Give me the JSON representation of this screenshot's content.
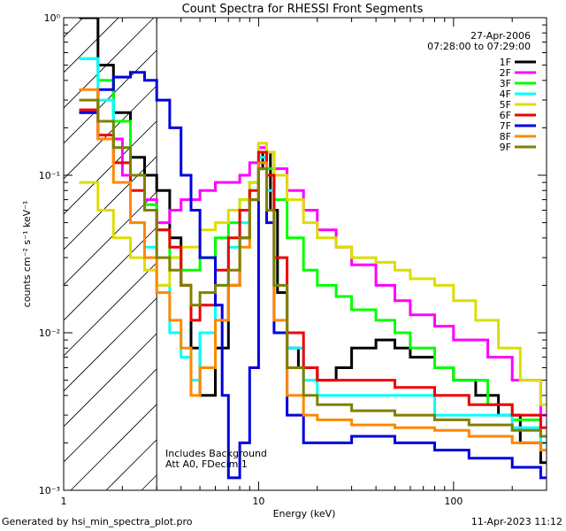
{
  "chart_data": {
    "type": "line",
    "title": "Count Spectra for RHESSI Front Segments",
    "xlabel": "Energy (keV)",
    "ylabel": "counts cm⁻² s⁻¹ keV⁻¹",
    "xscale": "log",
    "yscale": "log",
    "xlim": [
      1,
      300
    ],
    "ylim": [
      0.001,
      1
    ],
    "x_ticks": [
      {
        "value": 1,
        "label": "1"
      },
      {
        "value": 10,
        "label": "10"
      },
      {
        "value": 100,
        "label": "100"
      }
    ],
    "y_ticks": [
      {
        "value": 1,
        "label": "10⁰"
      },
      {
        "value": 0.1,
        "label": "10⁻¹"
      },
      {
        "value": 0.01,
        "label": "10⁻²"
      },
      {
        "value": 0.001,
        "label": "10⁻³"
      }
    ],
    "info_lines": [
      "27-Apr-2006",
      "07:28:00 to 07:29:00"
    ],
    "annotations": [
      "Includes Background",
      "Att A0, FDecim 1"
    ],
    "shaded_region": {
      "x_from": 1,
      "x_to": 3,
      "style": "diagonal hatch"
    },
    "series": [
      {
        "name": "1F",
        "color": "#000000",
        "points": [
          [
            1.2,
            1.0
          ],
          [
            1.5,
            0.5
          ],
          [
            1.8,
            0.25
          ],
          [
            2.2,
            0.13
          ],
          [
            2.6,
            0.1
          ],
          [
            3.0,
            0.08
          ],
          [
            3.5,
            0.04
          ],
          [
            4.0,
            0.02
          ],
          [
            4.5,
            0.008
          ],
          [
            5.0,
            0.004
          ],
          [
            6.0,
            0.008
          ],
          [
            7.0,
            0.02
          ],
          [
            8.0,
            0.04
          ],
          [
            9.0,
            0.07
          ],
          [
            10.0,
            0.11
          ],
          [
            10.5,
            0.14
          ],
          [
            11.5,
            0.06
          ],
          [
            12.5,
            0.018
          ],
          [
            14.0,
            0.008
          ],
          [
            16.0,
            0.006
          ],
          [
            20.0,
            0.005
          ],
          [
            25.0,
            0.006
          ],
          [
            30.0,
            0.008
          ],
          [
            40.0,
            0.009
          ],
          [
            50.0,
            0.008
          ],
          [
            60.0,
            0.007
          ],
          [
            80.0,
            0.006
          ],
          [
            100.0,
            0.005
          ],
          [
            130.0,
            0.004
          ],
          [
            170.0,
            0.003
          ],
          [
            220.0,
            0.002
          ],
          [
            280.0,
            0.0015
          ]
        ]
      },
      {
        "name": "2F",
        "color": "#ff00ff",
        "points": [
          [
            1.2,
            0.25
          ],
          [
            1.5,
            0.17
          ],
          [
            2.0,
            0.1
          ],
          [
            2.6,
            0.07
          ],
          [
            3.0,
            0.05
          ],
          [
            3.5,
            0.06
          ],
          [
            4.0,
            0.07
          ],
          [
            5.0,
            0.08
          ],
          [
            6.0,
            0.09
          ],
          [
            7.0,
            0.09
          ],
          [
            8.0,
            0.1
          ],
          [
            9.0,
            0.12
          ],
          [
            10.0,
            0.15
          ],
          [
            11.0,
            0.14
          ],
          [
            12.0,
            0.11
          ],
          [
            14.0,
            0.08
          ],
          [
            17.0,
            0.06
          ],
          [
            20.0,
            0.045
          ],
          [
            25.0,
            0.035
          ],
          [
            30.0,
            0.027
          ],
          [
            40.0,
            0.02
          ],
          [
            50.0,
            0.016
          ],
          [
            60.0,
            0.013
          ],
          [
            80.0,
            0.011
          ],
          [
            100.0,
            0.009
          ],
          [
            150.0,
            0.007
          ],
          [
            200.0,
            0.005
          ],
          [
            280.0,
            0.003
          ]
        ]
      },
      {
        "name": "3F",
        "color": "#00ff00",
        "points": [
          [
            1.2,
            0.55
          ],
          [
            1.5,
            0.4
          ],
          [
            1.8,
            0.22
          ],
          [
            2.2,
            0.1
          ],
          [
            2.6,
            0.065
          ],
          [
            3.0,
            0.045
          ],
          [
            3.5,
            0.03
          ],
          [
            4.0,
            0.025
          ],
          [
            5.0,
            0.03
          ],
          [
            6.0,
            0.04
          ],
          [
            7.0,
            0.05
          ],
          [
            8.0,
            0.07
          ],
          [
            9.0,
            0.09
          ],
          [
            10.0,
            0.12
          ],
          [
            11.0,
            0.11
          ],
          [
            12.0,
            0.07
          ],
          [
            14.0,
            0.04
          ],
          [
            17.0,
            0.025
          ],
          [
            20.0,
            0.02
          ],
          [
            25.0,
            0.017
          ],
          [
            30.0,
            0.014
          ],
          [
            40.0,
            0.012
          ],
          [
            50.0,
            0.01
          ],
          [
            60.0,
            0.008
          ],
          [
            80.0,
            0.006
          ],
          [
            100.0,
            0.005
          ],
          [
            150.0,
            0.0035
          ],
          [
            200.0,
            0.0028
          ],
          [
            280.0,
            0.0022
          ]
        ]
      },
      {
        "name": "4F",
        "color": "#00ffff",
        "points": [
          [
            1.2,
            0.55
          ],
          [
            1.5,
            0.3
          ],
          [
            1.8,
            0.15
          ],
          [
            2.2,
            0.05
          ],
          [
            2.6,
            0.035
          ],
          [
            3.0,
            0.02
          ],
          [
            3.5,
            0.01
          ],
          [
            4.0,
            0.007
          ],
          [
            4.5,
            0.005
          ],
          [
            5.0,
            0.01
          ],
          [
            6.0,
            0.02
          ],
          [
            7.0,
            0.035
          ],
          [
            8.0,
            0.05
          ],
          [
            9.0,
            0.09
          ],
          [
            10.0,
            0.13
          ],
          [
            11.0,
            0.08
          ],
          [
            12.0,
            0.02
          ],
          [
            14.0,
            0.008
          ],
          [
            17.0,
            0.005
          ],
          [
            20.0,
            0.004
          ],
          [
            30.0,
            0.004
          ],
          [
            50.0,
            0.004
          ],
          [
            80.0,
            0.003
          ],
          [
            120.0,
            0.003
          ],
          [
            200.0,
            0.0025
          ],
          [
            280.0,
            0.002
          ]
        ]
      },
      {
        "name": "5F",
        "color": "#dddd00",
        "points": [
          [
            1.2,
            0.09
          ],
          [
            1.5,
            0.06
          ],
          [
            1.8,
            0.04
          ],
          [
            2.2,
            0.03
          ],
          [
            2.6,
            0.025
          ],
          [
            3.0,
            0.02
          ],
          [
            3.5,
            0.03
          ],
          [
            4.0,
            0.035
          ],
          [
            5.0,
            0.045
          ],
          [
            6.0,
            0.05
          ],
          [
            7.0,
            0.06
          ],
          [
            8.0,
            0.07
          ],
          [
            9.0,
            0.09
          ],
          [
            10.0,
            0.16
          ],
          [
            11.0,
            0.14
          ],
          [
            12.0,
            0.1
          ],
          [
            14.0,
            0.07
          ],
          [
            17.0,
            0.05
          ],
          [
            20.0,
            0.04
          ],
          [
            25.0,
            0.035
          ],
          [
            30.0,
            0.03
          ],
          [
            40.0,
            0.028
          ],
          [
            50.0,
            0.025
          ],
          [
            60.0,
            0.022
          ],
          [
            80.0,
            0.02
          ],
          [
            100.0,
            0.016
          ],
          [
            130.0,
            0.012
          ],
          [
            170.0,
            0.008
          ],
          [
            220.0,
            0.005
          ],
          [
            280.0,
            0.0035
          ]
        ]
      },
      {
        "name": "6F",
        "color": "#ee0000",
        "points": [
          [
            1.2,
            0.26
          ],
          [
            1.5,
            0.18
          ],
          [
            1.8,
            0.12
          ],
          [
            2.2,
            0.08
          ],
          [
            2.6,
            0.06
          ],
          [
            3.0,
            0.045
          ],
          [
            3.5,
            0.035
          ],
          [
            4.0,
            0.02
          ],
          [
            4.5,
            0.012
          ],
          [
            5.0,
            0.015
          ],
          [
            6.0,
            0.025
          ],
          [
            7.0,
            0.04
          ],
          [
            8.0,
            0.06
          ],
          [
            9.0,
            0.08
          ],
          [
            10.0,
            0.14
          ],
          [
            11.0,
            0.1
          ],
          [
            12.0,
            0.03
          ],
          [
            14.0,
            0.01
          ],
          [
            17.0,
            0.006
          ],
          [
            20.0,
            0.005
          ],
          [
            30.0,
            0.005
          ],
          [
            50.0,
            0.0045
          ],
          [
            80.0,
            0.004
          ],
          [
            120.0,
            0.0035
          ],
          [
            200.0,
            0.003
          ],
          [
            280.0,
            0.0025
          ]
        ]
      },
      {
        "name": "7F",
        "color": "#0000dd",
        "points": [
          [
            1.2,
            0.25
          ],
          [
            1.5,
            0.35
          ],
          [
            1.8,
            0.42
          ],
          [
            2.2,
            0.45
          ],
          [
            2.6,
            0.4
          ],
          [
            3.0,
            0.3
          ],
          [
            3.5,
            0.2
          ],
          [
            4.0,
            0.1
          ],
          [
            4.5,
            0.06
          ],
          [
            5.0,
            0.03
          ],
          [
            6.0,
            0.015
          ],
          [
            6.5,
            0.004
          ],
          [
            7.0,
            0.0012
          ],
          [
            8.0,
            0.002
          ],
          [
            9.0,
            0.006
          ],
          [
            10.0,
            0.12
          ],
          [
            11.0,
            0.05
          ],
          [
            12.0,
            0.01
          ],
          [
            14.0,
            0.003
          ],
          [
            17.0,
            0.002
          ],
          [
            20.0,
            0.002
          ],
          [
            30.0,
            0.0022
          ],
          [
            50.0,
            0.002
          ],
          [
            80.0,
            0.0018
          ],
          [
            120.0,
            0.0016
          ],
          [
            200.0,
            0.0014
          ],
          [
            280.0,
            0.0012
          ]
        ]
      },
      {
        "name": "8F",
        "color": "#ff8800",
        "points": [
          [
            1.2,
            0.35
          ],
          [
            1.5,
            0.17
          ],
          [
            1.8,
            0.09
          ],
          [
            2.2,
            0.05
          ],
          [
            2.6,
            0.03
          ],
          [
            3.0,
            0.018
          ],
          [
            3.5,
            0.012
          ],
          [
            4.0,
            0.008
          ],
          [
            4.5,
            0.004
          ],
          [
            5.0,
            0.006
          ],
          [
            6.0,
            0.012
          ],
          [
            7.0,
            0.02
          ],
          [
            8.0,
            0.035
          ],
          [
            9.0,
            0.07
          ],
          [
            10.0,
            0.12
          ],
          [
            11.0,
            0.06
          ],
          [
            12.0,
            0.012
          ],
          [
            14.0,
            0.004
          ],
          [
            17.0,
            0.003
          ],
          [
            20.0,
            0.0028
          ],
          [
            30.0,
            0.0026
          ],
          [
            50.0,
            0.0025
          ],
          [
            80.0,
            0.0024
          ],
          [
            120.0,
            0.0022
          ],
          [
            200.0,
            0.002
          ],
          [
            280.0,
            0.0018
          ]
        ]
      },
      {
        "name": "9F",
        "color": "#808000",
        "points": [
          [
            1.2,
            0.3
          ],
          [
            1.5,
            0.22
          ],
          [
            1.8,
            0.15
          ],
          [
            2.2,
            0.1
          ],
          [
            2.6,
            0.06
          ],
          [
            3.0,
            0.03
          ],
          [
            3.5,
            0.025
          ],
          [
            4.0,
            0.02
          ],
          [
            4.5,
            0.015
          ],
          [
            5.0,
            0.018
          ],
          [
            6.0,
            0.02
          ],
          [
            7.0,
            0.025
          ],
          [
            8.0,
            0.04
          ],
          [
            9.0,
            0.07
          ],
          [
            10.0,
            0.11
          ],
          [
            11.0,
            0.06
          ],
          [
            12.0,
            0.02
          ],
          [
            14.0,
            0.006
          ],
          [
            17.0,
            0.004
          ],
          [
            20.0,
            0.0035
          ],
          [
            30.0,
            0.0032
          ],
          [
            50.0,
            0.003
          ],
          [
            80.0,
            0.0028
          ],
          [
            120.0,
            0.0026
          ],
          [
            200.0,
            0.0024
          ],
          [
            280.0,
            0.0022
          ]
        ]
      }
    ]
  },
  "footer": {
    "generated_by": "Generated by hsi_min_spectra_plot.pro",
    "timestamp": "11-Apr-2023 11:12"
  }
}
